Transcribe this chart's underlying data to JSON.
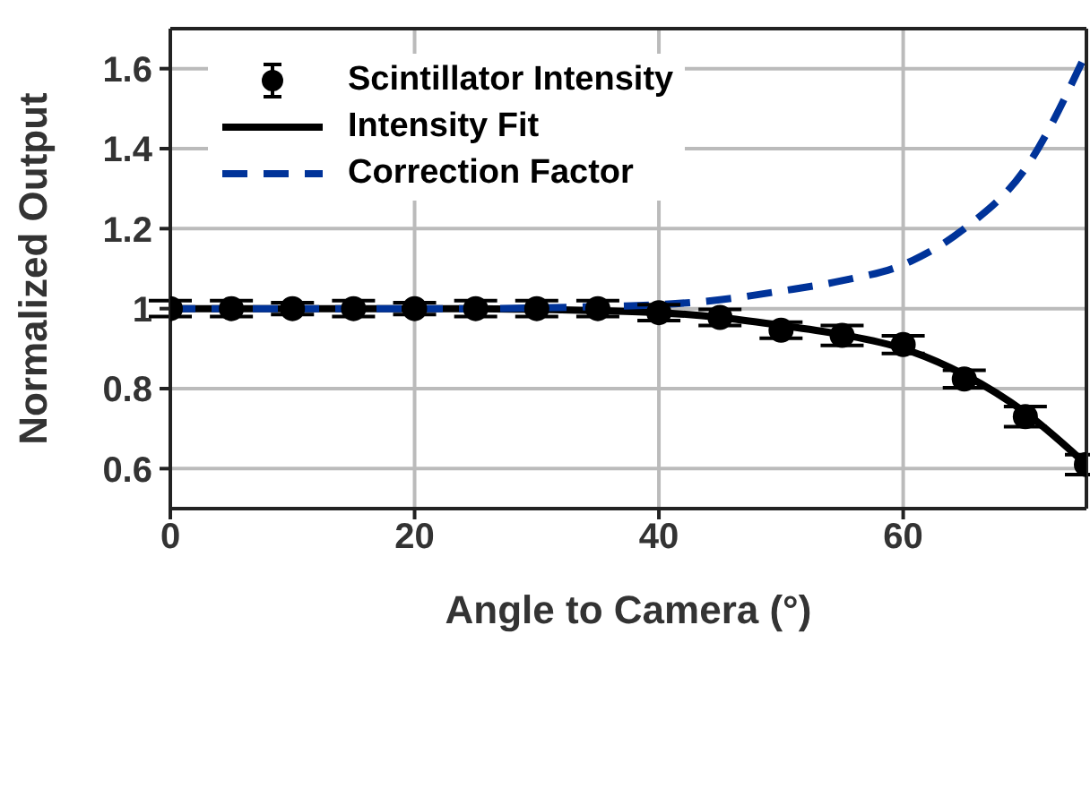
{
  "chart_data": {
    "type": "line",
    "xlabel": "Angle to Camera (°)",
    "ylabel": "Normalized Output",
    "xlim": [
      0,
      75
    ],
    "xticks": [
      0,
      20,
      40,
      60
    ],
    "ylim": [
      0.5,
      1.7
    ],
    "yticks": [
      0.6,
      0.8,
      1,
      1.2,
      1.4,
      1.6
    ],
    "grid": true,
    "legend": "top left",
    "series": [
      {
        "name": "Scintillator Intensity",
        "type": "scatter",
        "color": "#000000",
        "marker": "circle",
        "x": [
          0,
          5,
          10,
          15,
          20,
          25,
          30,
          35,
          40,
          45,
          50,
          55,
          60,
          65,
          70,
          75
        ],
        "values": [
          1,
          1,
          1,
          1,
          1,
          1,
          1,
          1,
          0.99,
          0.978,
          0.946,
          0.933,
          0.91,
          0.824,
          0.73,
          0.61
        ],
        "errors": [
          0.02,
          0.02,
          0.015,
          0.02,
          0.015,
          0.02,
          0.02,
          0.02,
          0.02,
          0.02,
          0.02,
          0.025,
          0.022,
          0.022,
          0.025,
          0.025
        ]
      },
      {
        "name": "Intensity Fit",
        "type": "line",
        "color": "#000000",
        "marker": "none",
        "line_style": "solid",
        "x": [
          0,
          5,
          10,
          15,
          20,
          25,
          30,
          35,
          40,
          45,
          50,
          55,
          60,
          65,
          70,
          75
        ],
        "values": [
          1,
          1,
          1,
          1,
          1,
          1,
          0.998,
          0.995,
          0.99,
          0.978,
          0.958,
          0.935,
          0.9,
          0.835,
          0.74,
          0.61
        ]
      },
      {
        "name": "Correction Factor",
        "type": "line",
        "color": "#003399",
        "marker": "none",
        "line_style": "dashed",
        "x": [
          0,
          5,
          10,
          15,
          20,
          25,
          30,
          35,
          40,
          45,
          50,
          55,
          60,
          65,
          70,
          75
        ],
        "values": [
          1,
          1,
          1,
          1,
          1,
          1,
          1.002,
          1.005,
          1.01,
          1.022,
          1.044,
          1.07,
          1.11,
          1.2,
          1.35,
          1.64
        ]
      }
    ]
  }
}
